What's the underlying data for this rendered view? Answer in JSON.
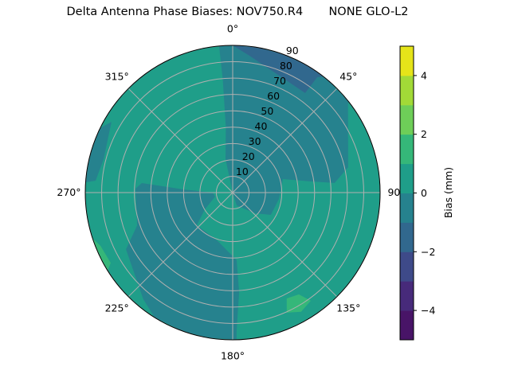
{
  "chart_data": {
    "type": "polar-contour",
    "title": "Delta Antenna Phase Biases: NOV750.R4       NONE GLO-L2",
    "theta_direction": "clockwise",
    "theta_zero": "north",
    "theta_ticks": [
      "0°",
      "45°",
      "90°",
      "135°",
      "180°",
      "225°",
      "270°",
      "315°"
    ],
    "theta_tick_values": [
      0,
      45,
      90,
      135,
      180,
      225,
      270,
      315
    ],
    "r_ticks": [
      "10",
      "20",
      "30",
      "40",
      "50",
      "60",
      "70",
      "80",
      "90"
    ],
    "r_tick_values": [
      10,
      20,
      30,
      40,
      50,
      60,
      70,
      80,
      90
    ],
    "r_range": [
      0,
      90
    ],
    "grid": true,
    "colorbar": {
      "label": "Bias (mm)",
      "colormap": "viridis",
      "levels": [
        -5,
        -4,
        -3,
        -2,
        -1,
        0,
        1,
        2,
        3,
        4,
        5
      ],
      "colors": [
        "#481467",
        "#472a7a",
        "#3e4a89",
        "#31688e",
        "#26828e",
        "#1f9e89",
        "#35b779",
        "#6ece58",
        "#a2da37",
        "#e5e419"
      ],
      "ticks": [
        "4",
        "2",
        "0",
        "−2",
        "−4"
      ],
      "tick_values": [
        4,
        2,
        0,
        -2,
        -4
      ]
    },
    "background_level": [
      0,
      1
    ],
    "regions": [
      {
        "level": [
          -1,
          0
        ],
        "points": [
          [
            354.7,
            90
          ],
          [
            355,
            69.3
          ],
          [
            354,
            40
          ],
          [
            348,
            21
          ],
          [
            0,
            0
          ],
          [
            162.6,
            8.2
          ],
          [
            132.9,
            18.6
          ],
          [
            120.3,
            27
          ],
          [
            97.9,
            28.5
          ],
          [
            74.9,
            31.7
          ],
          [
            81.9,
            48.2
          ],
          [
            84.6,
            62.5
          ],
          [
            77.6,
            72.2
          ],
          [
            52.3,
            89
          ],
          [
            52,
            90
          ],
          [
            40,
            90
          ],
          [
            25,
            90
          ],
          [
            10,
            90
          ],
          [
            0,
            90
          ]
        ]
      },
      {
        "level": [
          -1,
          0
        ],
        "points": [
          [
            272.3,
            59.4
          ],
          [
            276,
            55.8
          ],
          [
            273.7,
            30.2
          ],
          [
            270,
            12.2
          ],
          [
            257.2,
            11
          ],
          [
            239,
            19.8
          ],
          [
            227.7,
            29.6
          ],
          [
            197.3,
            31
          ],
          [
            176.6,
            41.4
          ],
          [
            176.3,
            61
          ],
          [
            178.4,
            85.1
          ],
          [
            178.5,
            90
          ],
          [
            190,
            90
          ],
          [
            200,
            90
          ],
          [
            212,
            90
          ],
          [
            220,
            85
          ],
          [
            242,
            73.8
          ],
          [
            251,
            61.7
          ]
        ]
      },
      {
        "level": [
          -1,
          0
        ],
        "points": [
          [
            296,
            90
          ],
          [
            300.3,
            85.7
          ],
          [
            284.5,
            81.4
          ],
          [
            275,
            84
          ],
          [
            274,
            90
          ],
          [
            280,
            90
          ],
          [
            288,
            90
          ]
        ]
      },
      {
        "level": [
          -2,
          -1
        ],
        "points": [
          [
            0,
            90
          ],
          [
            7,
            84.3
          ],
          [
            21.5,
            77
          ],
          [
            36,
            75.2
          ],
          [
            36.2,
            87.4
          ],
          [
            38,
            90
          ],
          [
            30,
            90
          ],
          [
            20,
            90
          ],
          [
            10,
            90
          ]
        ]
      },
      {
        "level": [
          1,
          2
        ],
        "points": [
          [
            153,
            72.6
          ],
          [
            147,
            74.2
          ],
          [
            144.2,
            81.5
          ],
          [
            150.2,
            84
          ],
          [
            155.8,
            80.5
          ]
        ]
      },
      {
        "level": [
          1,
          2
        ],
        "points": [
          [
            252,
            90
          ],
          [
            248,
            87
          ],
          [
            240,
            86
          ],
          [
            238,
            90
          ],
          [
            245,
            90
          ]
        ]
      }
    ]
  }
}
